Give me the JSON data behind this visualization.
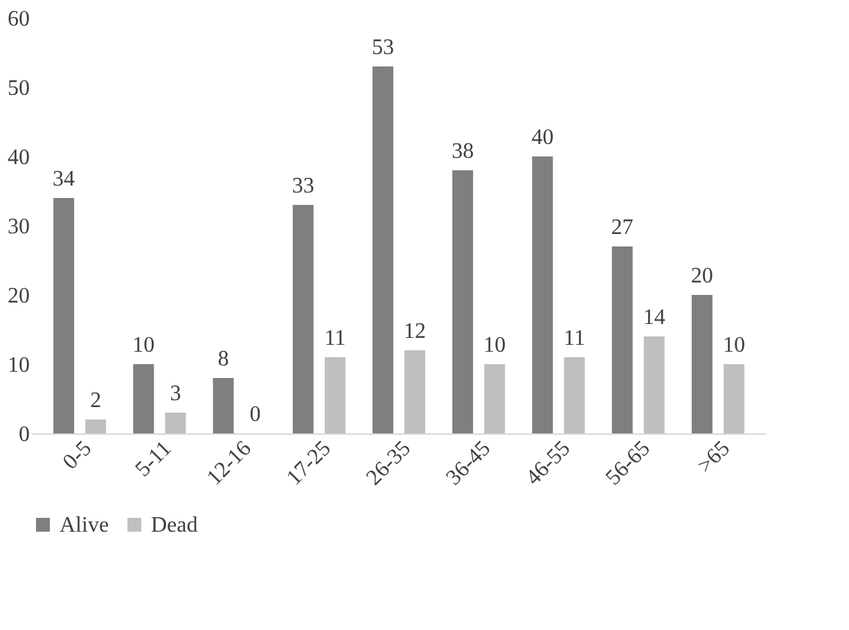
{
  "chart_data": {
    "type": "bar",
    "categories": [
      "0-5",
      "5-11",
      "12-16",
      "17-25",
      "26-35",
      "36-45",
      "46-55",
      "56-65",
      ">65"
    ],
    "series": [
      {
        "name": "Alive",
        "color": "#7f7f7f",
        "values": [
          34,
          10,
          8,
          33,
          53,
          38,
          40,
          27,
          20
        ]
      },
      {
        "name": "Dead",
        "color": "#bfbfbf",
        "values": [
          2,
          3,
          0,
          11,
          12,
          10,
          11,
          14,
          10
        ]
      }
    ],
    "ylim": [
      0,
      60
    ],
    "yticks": [
      0,
      10,
      20,
      30,
      40,
      50,
      60
    ],
    "grid": false,
    "legend": "bottom",
    "data_labels": true
  }
}
